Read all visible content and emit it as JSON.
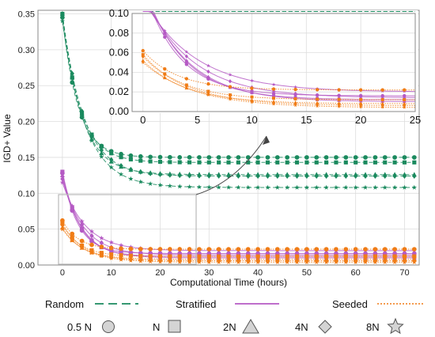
{
  "colors": {
    "random": "#1a8a5e",
    "stratified": "#b55ac4",
    "seeded": "#f07c16",
    "grid": "#dddddd",
    "frame": "#888888"
  },
  "chart_data": [
    {
      "type": "scatter",
      "title": "",
      "xlabel": "Computational Time (hours)",
      "ylabel": "IGD+ Value",
      "xlim": [
        -5,
        73
      ],
      "ylim": [
        0,
        0.355
      ],
      "xticks": [
        "0",
        "10",
        "20",
        "30",
        "40",
        "50",
        "60",
        "70"
      ],
      "yticks": [
        "0.00",
        "0.05",
        "0.10",
        "0.15",
        "0.20",
        "0.25",
        "0.30",
        "0.35"
      ],
      "grid": true,
      "series": [
        {
          "group": "Random",
          "marker": "circle",
          "y0": 0.345,
          "yfinal": 0.15
        },
        {
          "group": "Random",
          "marker": "square",
          "y0": 0.35,
          "yfinal": 0.143
        },
        {
          "group": "Random",
          "marker": "triangle",
          "y0": 0.35,
          "yfinal": 0.126
        },
        {
          "group": "Random",
          "marker": "diamond",
          "y0": 0.35,
          "yfinal": 0.124
        },
        {
          "group": "Random",
          "marker": "star",
          "y0": 0.34,
          "yfinal": 0.108
        },
        {
          "group": "Stratified",
          "marker": "circle",
          "y0": 0.128,
          "yfinal": 0.016
        },
        {
          "group": "Stratified",
          "marker": "square",
          "y0": 0.13,
          "yfinal": 0.012
        },
        {
          "group": "Stratified",
          "marker": "triangle",
          "y0": 0.125,
          "yfinal": 0.01
        },
        {
          "group": "Stratified",
          "marker": "diamond",
          "y0": 0.12,
          "yfinal": 0.014
        },
        {
          "group": "Stratified",
          "marker": "star",
          "y0": 0.115,
          "yfinal": 0.02
        },
        {
          "group": "Seeded",
          "marker": "circle",
          "y0": 0.062,
          "yfinal": 0.022
        },
        {
          "group": "Seeded",
          "marker": "square",
          "y0": 0.058,
          "yfinal": 0.012
        },
        {
          "group": "Seeded",
          "marker": "triangle",
          "y0": 0.052,
          "yfinal": 0.008
        },
        {
          "group": "Seeded",
          "marker": "diamond",
          "y0": 0.056,
          "yfinal": 0.006
        },
        {
          "group": "Seeded",
          "marker": "star",
          "y0": 0.05,
          "yfinal": 0.004
        }
      ]
    },
    {
      "type": "scatter",
      "title": "",
      "xlabel": "",
      "ylabel": "",
      "xlim": [
        -1,
        25
      ],
      "ylim": [
        0,
        0.1
      ],
      "xticks": [
        "0",
        "5",
        "10",
        "15",
        "20",
        "25"
      ],
      "yticks": [
        "0.00",
        "0.02",
        "0.04",
        "0.06",
        "0.08",
        "0.10"
      ],
      "grid": true,
      "note": "zoom of region x 0-25, y 0-0.1 of main chart"
    }
  ],
  "legend": {
    "random": "Random",
    "stratified": "Stratified",
    "seeded": "Seeded",
    "half_n": "0.5 N",
    "n": "N",
    "two_n": "2N",
    "four_n": "4N",
    "eight_n": "8N"
  }
}
